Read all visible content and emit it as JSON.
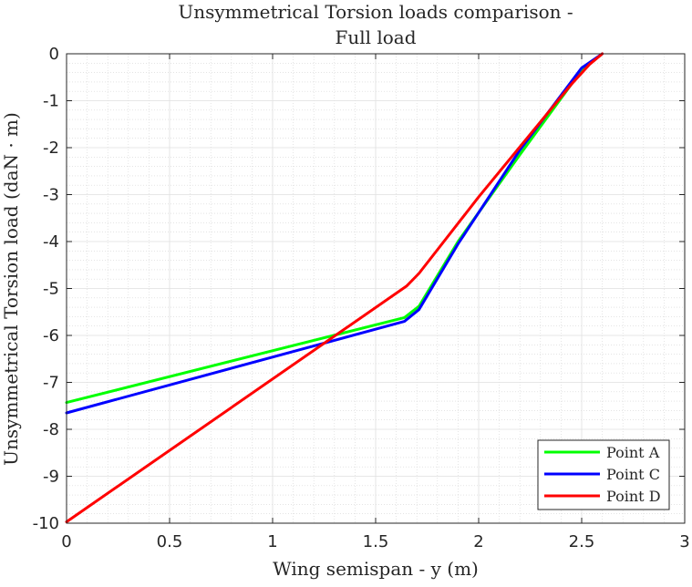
{
  "chart_data": {
    "type": "line",
    "title": [
      "Unsymmetrical Torsion loads comparison -",
      "Full load"
    ],
    "xlabel": "Wing semispan - y (m)",
    "ylabel": "Unsymmetrical Torsion load (daN · m)",
    "xlim": [
      0,
      3
    ],
    "ylim": [
      -10,
      0
    ],
    "xticks": [
      0,
      0.5,
      1,
      1.5,
      2,
      2.5,
      3
    ],
    "yticks": [
      0,
      -1,
      -2,
      -3,
      -4,
      -5,
      -6,
      -7,
      -8,
      -9,
      -10
    ],
    "xtick_labels": [
      "0",
      "0.5",
      "1",
      "1.5",
      "2",
      "2.5",
      "3"
    ],
    "ytick_labels": [
      "0",
      "-1",
      "-2",
      "-3",
      "-4",
      "-5",
      "-6",
      "-7",
      "-8",
      "-9",
      "-10"
    ],
    "grid": "major and minor",
    "legend_position": "bottom-right",
    "series": [
      {
        "name": "Point A",
        "color": "#00ff00",
        "x": [
          0,
          1.64,
          1.71,
          1.9,
          2.2,
          2.5,
          2.6
        ],
        "y": [
          -7.43,
          -5.62,
          -5.38,
          -4.0,
          -2.15,
          -0.35,
          0
        ]
      },
      {
        "name": "Point C",
        "color": "#0000ff",
        "x": [
          0,
          1.64,
          1.71,
          1.9,
          2.2,
          2.5,
          2.6
        ],
        "y": [
          -7.65,
          -5.7,
          -5.45,
          -4.05,
          -2.05,
          -0.3,
          0
        ]
      },
      {
        "name": "Point D",
        "color": "#ff0000",
        "x": [
          0,
          1.65,
          1.71,
          2.0,
          2.45,
          2.54,
          2.6
        ],
        "y": [
          -9.97,
          -4.95,
          -4.68,
          -3.05,
          -0.65,
          -0.22,
          0
        ]
      }
    ]
  }
}
